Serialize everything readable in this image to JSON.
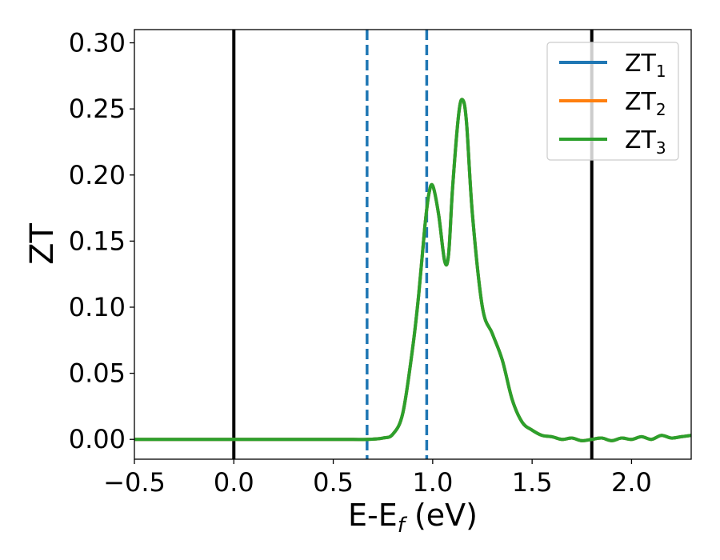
{
  "chart_data": {
    "type": "line",
    "xlabel_main": "E-E",
    "xlabel_sub": "f",
    "xlabel_unit": " (eV)",
    "ylabel": "ZT",
    "xlim": [
      -0.5,
      2.3
    ],
    "ylim": [
      -0.015,
      0.31
    ],
    "x_ticks": [
      -0.5,
      0.0,
      0.5,
      1.0,
      1.5,
      2.0
    ],
    "x_tick_labels": [
      "−0.5",
      "0.0",
      "0.5",
      "1.0",
      "1.5",
      "2.0"
    ],
    "y_ticks": [
      0.0,
      0.05,
      0.1,
      0.15,
      0.2,
      0.25,
      0.3
    ],
    "y_tick_labels": [
      "0.00",
      "0.05",
      "0.10",
      "0.15",
      "0.20",
      "0.25",
      "0.30"
    ],
    "grid": false,
    "legend_placement": "top-right",
    "vertical_lines": [
      {
        "x": 0.0,
        "style": "solid",
        "color": "#000000"
      },
      {
        "x": 1.8,
        "style": "solid",
        "color": "#000000"
      },
      {
        "x": 0.67,
        "style": "dashed",
        "color": "#1f77b4"
      },
      {
        "x": 0.97,
        "style": "dashed",
        "color": "#1f77b4"
      }
    ],
    "x": [
      -0.5,
      0.0,
      0.5,
      0.67,
      0.75,
      0.8,
      0.85,
      0.9,
      0.93,
      0.96,
      0.98,
      1.0,
      1.03,
      1.06,
      1.08,
      1.1,
      1.13,
      1.15,
      1.17,
      1.2,
      1.25,
      1.3,
      1.35,
      1.4,
      1.45,
      1.5,
      1.55,
      1.6,
      1.65,
      1.7,
      1.75,
      1.8,
      1.85,
      1.9,
      1.95,
      2.0,
      2.05,
      2.1,
      2.15,
      2.2,
      2.25,
      2.3
    ],
    "series": [
      {
        "name_main": "ZT",
        "name_sub": "1",
        "color": "#1f77b4",
        "values": [
          0,
          0,
          0,
          0,
          0.001,
          0.004,
          0.02,
          0.07,
          0.11,
          0.16,
          0.185,
          0.192,
          0.17,
          0.135,
          0.14,
          0.19,
          0.245,
          0.257,
          0.24,
          0.17,
          0.1,
          0.08,
          0.06,
          0.03,
          0.013,
          0.007,
          0.003,
          0.002,
          0.0,
          0.001,
          -0.001,
          0.0,
          0.001,
          -0.001,
          0.001,
          0.0,
          0.002,
          0.0,
          0.003,
          0.001,
          0.002,
          0.003
        ]
      },
      {
        "name_main": "ZT",
        "name_sub": "2",
        "color": "#ff7f0e",
        "values": [
          0,
          0,
          0,
          0,
          0.001,
          0.004,
          0.02,
          0.07,
          0.11,
          0.16,
          0.185,
          0.192,
          0.17,
          0.135,
          0.14,
          0.19,
          0.245,
          0.257,
          0.24,
          0.17,
          0.1,
          0.08,
          0.06,
          0.03,
          0.013,
          0.007,
          0.003,
          0.002,
          0.0,
          0.001,
          -0.001,
          0.0,
          0.001,
          -0.001,
          0.001,
          0.0,
          0.002,
          0.0,
          0.003,
          0.001,
          0.002,
          0.003
        ]
      },
      {
        "name_main": "ZT",
        "name_sub": "3",
        "color": "#2ca02c",
        "values": [
          0,
          0,
          0,
          0,
          0.001,
          0.004,
          0.02,
          0.07,
          0.11,
          0.16,
          0.185,
          0.192,
          0.17,
          0.135,
          0.14,
          0.19,
          0.245,
          0.257,
          0.24,
          0.17,
          0.1,
          0.08,
          0.06,
          0.03,
          0.013,
          0.007,
          0.003,
          0.002,
          0.0,
          0.001,
          -0.001,
          0.0,
          0.001,
          -0.001,
          0.001,
          0.0,
          0.002,
          0.0,
          0.003,
          0.001,
          0.002,
          0.003
        ]
      }
    ]
  }
}
